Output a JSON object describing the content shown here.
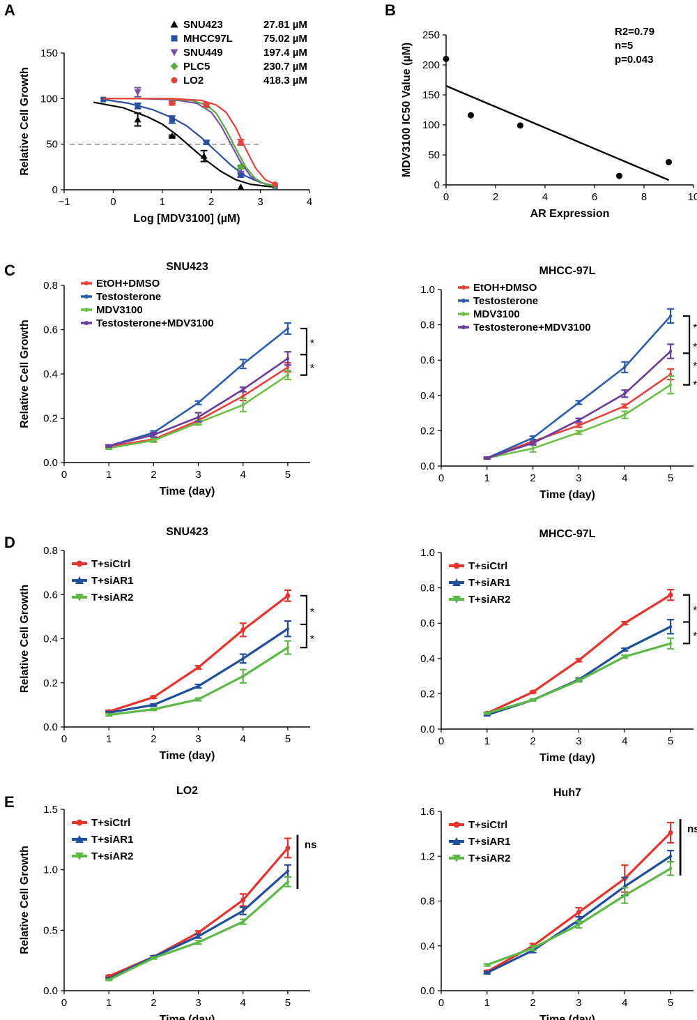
{
  "chart_data": [
    {
      "panel": "A",
      "type": "line",
      "xlabel": "Log [MDV3100] (µM)",
      "ylabel": "Relative Cell Growth",
      "xlim": [
        -1,
        4
      ],
      "ylim": [
        0,
        150
      ],
      "xticks": [
        -1,
        0,
        1,
        2,
        3,
        4
      ],
      "yticks": [
        0,
        50,
        100,
        150
      ],
      "reference_line": 50,
      "series": [
        {
          "name": "SNU423",
          "value_label": "27.81 µM",
          "color": "#000000",
          "marker": "triangle-up",
          "points": [
            {
              "x": 0.5,
              "y": 77,
              "err": 7
            },
            {
              "x": 1.2,
              "y": 59,
              "err": 1
            },
            {
              "x": 1.85,
              "y": 37,
              "err": 6
            },
            {
              "x": 2.6,
              "y": 3,
              "err": 0
            }
          ],
          "curve": [
            {
              "x": -0.4,
              "y": 96
            },
            {
              "x": 0.2,
              "y": 90
            },
            {
              "x": 0.7,
              "y": 80
            },
            {
              "x": 1.0,
              "y": 72
            },
            {
              "x": 1.3,
              "y": 60
            },
            {
              "x": 1.6,
              "y": 46
            },
            {
              "x": 1.9,
              "y": 32
            },
            {
              "x": 2.2,
              "y": 20
            },
            {
              "x": 2.5,
              "y": 11
            },
            {
              "x": 2.8,
              "y": 6
            },
            {
              "x": 3.1,
              "y": 4
            },
            {
              "x": 3.3,
              "y": 3
            }
          ]
        },
        {
          "name": "MHCC97L",
          "value_label": "75.02 µM",
          "color": "#2a4fa0",
          "marker": "square",
          "points": [
            {
              "x": -0.2,
              "y": 99,
              "err": 0
            },
            {
              "x": 0.5,
              "y": 92,
              "err": 3
            },
            {
              "x": 1.2,
              "y": 77,
              "err": 4
            },
            {
              "x": 1.9,
              "y": 52,
              "err": 2
            },
            {
              "x": 2.6,
              "y": 16,
              "err": 2
            },
            {
              "x": 3.3,
              "y": 4,
              "err": 0
            }
          ],
          "curve": [
            {
              "x": -0.2,
              "y": 99
            },
            {
              "x": 0.3,
              "y": 95
            },
            {
              "x": 0.8,
              "y": 88
            },
            {
              "x": 1.2,
              "y": 79
            },
            {
              "x": 1.5,
              "y": 70
            },
            {
              "x": 1.8,
              "y": 57
            },
            {
              "x": 2.1,
              "y": 42
            },
            {
              "x": 2.4,
              "y": 27
            },
            {
              "x": 2.7,
              "y": 15
            },
            {
              "x": 3.0,
              "y": 8
            },
            {
              "x": 3.3,
              "y": 4
            }
          ]
        },
        {
          "name": "SNU449",
          "value_label": "197.4 µM",
          "color": "#7b4fa8",
          "marker": "triangle-down",
          "points": [
            {
              "x": 0.5,
              "y": 107,
              "err": 5
            },
            {
              "x": 1.2,
              "y": 97,
              "err": 2
            },
            {
              "x": 1.9,
              "y": 93,
              "err": 2
            },
            {
              "x": 2.6,
              "y": 23,
              "err": 3
            }
          ],
          "curve": [
            {
              "x": -0.2,
              "y": 100
            },
            {
              "x": 0.5,
              "y": 100
            },
            {
              "x": 1.2,
              "y": 99
            },
            {
              "x": 1.7,
              "y": 95
            },
            {
              "x": 2.0,
              "y": 85
            },
            {
              "x": 2.2,
              "y": 70
            },
            {
              "x": 2.4,
              "y": 50
            },
            {
              "x": 2.6,
              "y": 30
            },
            {
              "x": 2.8,
              "y": 15
            },
            {
              "x": 3.0,
              "y": 8
            },
            {
              "x": 3.3,
              "y": 4
            }
          ]
        },
        {
          "name": "PLC5",
          "value_label": "230.7 µM",
          "color": "#5aaa3c",
          "marker": "diamond",
          "points": [
            {
              "x": 1.9,
              "y": 92,
              "err": 2
            },
            {
              "x": 2.6,
              "y": 25,
              "err": 2
            },
            {
              "x": 3.3,
              "y": 5,
              "err": 0
            }
          ],
          "curve": [
            {
              "x": -0.2,
              "y": 100
            },
            {
              "x": 1.0,
              "y": 100
            },
            {
              "x": 1.6,
              "y": 98
            },
            {
              "x": 1.9,
              "y": 93
            },
            {
              "x": 2.1,
              "y": 84
            },
            {
              "x": 2.3,
              "y": 66
            },
            {
              "x": 2.5,
              "y": 45
            },
            {
              "x": 2.7,
              "y": 25
            },
            {
              "x": 2.9,
              "y": 12
            },
            {
              "x": 3.1,
              "y": 6
            },
            {
              "x": 3.3,
              "y": 4
            }
          ]
        },
        {
          "name": "LO2",
          "value_label": "418.3 µM",
          "color": "#e8403c",
          "marker": "circle",
          "points": [
            {
              "x": 1.2,
              "y": 95,
              "err": 2
            },
            {
              "x": 1.9,
              "y": 93,
              "err": 2
            },
            {
              "x": 2.6,
              "y": 52,
              "err": 3
            },
            {
              "x": 3.3,
              "y": 6,
              "err": 0
            }
          ],
          "curve": [
            {
              "x": -0.2,
              "y": 100
            },
            {
              "x": 1.2,
              "y": 100
            },
            {
              "x": 1.8,
              "y": 98
            },
            {
              "x": 2.1,
              "y": 93
            },
            {
              "x": 2.3,
              "y": 85
            },
            {
              "x": 2.5,
              "y": 68
            },
            {
              "x": 2.7,
              "y": 45
            },
            {
              "x": 2.9,
              "y": 24
            },
            {
              "x": 3.1,
              "y": 11
            },
            {
              "x": 3.3,
              "y": 6
            }
          ]
        }
      ]
    },
    {
      "panel": "B",
      "type": "scatter",
      "xlabel": "AR Expression",
      "ylabel": "MDV3100 IC50 Value (µM)",
      "xlim": [
        0,
        10
      ],
      "ylim": [
        0,
        250
      ],
      "xticks": [
        0,
        2,
        4,
        6,
        8,
        10
      ],
      "yticks": [
        0,
        50,
        100,
        150,
        200,
        250
      ],
      "annotations": [
        "R2=0.79",
        "n=5",
        "p=0.043"
      ],
      "points": [
        {
          "x": 0,
          "y": 210
        },
        {
          "x": 1,
          "y": 116
        },
        {
          "x": 3,
          "y": 99
        },
        {
          "x": 7,
          "y": 15
        },
        {
          "x": 9,
          "y": 38
        }
      ],
      "fit_line": [
        {
          "x": 0,
          "y": 165
        },
        {
          "x": 9,
          "y": 8
        }
      ]
    },
    {
      "panel": "C",
      "type": "line",
      "title": "SNU423",
      "xlabel": "Time (day)",
      "ylabel": "Relative Cell Growth",
      "xlim": [
        0,
        5.5
      ],
      "ylim": [
        0,
        0.8
      ],
      "xticks": [
        0,
        1,
        2,
        3,
        4,
        5
      ],
      "yticks": [
        0.0,
        0.2,
        0.4,
        0.6,
        0.8
      ],
      "legend_style": "small",
      "x": [
        1,
        2,
        3,
        4,
        5
      ],
      "series": [
        {
          "name": "EtOH+DMSO",
          "color": "#e8403c",
          "values": [
            0.072,
            0.105,
            0.19,
            0.3,
            0.43
          ],
          "err": [
            0.005,
            0.01,
            0.01,
            0.02,
            0.02
          ]
        },
        {
          "name": "Testosterone",
          "color": "#2a5db0",
          "values": [
            0.075,
            0.135,
            0.27,
            0.445,
            0.605
          ],
          "err": [
            0.005,
            0.008,
            0.008,
            0.02,
            0.025
          ]
        },
        {
          "name": "MDV3100",
          "color": "#6cbf45",
          "values": [
            0.065,
            0.1,
            0.18,
            0.26,
            0.395
          ],
          "err": [
            0.005,
            0.008,
            0.01,
            0.03,
            0.02
          ]
        },
        {
          "name": "Testosterone+MDV3100",
          "color": "#6a3a9c",
          "values": [
            0.075,
            0.125,
            0.205,
            0.33,
            0.47
          ],
          "err": [
            0.005,
            0.01,
            0.02,
            0.01,
            0.03
          ]
        }
      ],
      "significance": [
        "*",
        "*"
      ]
    },
    {
      "panel": "C",
      "type": "line",
      "title": "MHCC-97L",
      "xlabel": "Time (day)",
      "ylabel": "",
      "xlim": [
        0,
        5.5
      ],
      "ylim": [
        0,
        1.0
      ],
      "xticks": [
        0,
        1,
        2,
        3,
        4,
        5
      ],
      "yticks": [
        0.0,
        0.2,
        0.4,
        0.6,
        0.8,
        1.0
      ],
      "legend_style": "small",
      "x": [
        1,
        2,
        3,
        4,
        5
      ],
      "series": [
        {
          "name": "EtOH+DMSO",
          "color": "#e8403c",
          "values": [
            0.045,
            0.14,
            0.23,
            0.34,
            0.52
          ],
          "err": [
            0.005,
            0.01,
            0.01,
            0.01,
            0.03
          ]
        },
        {
          "name": "Testosterone",
          "color": "#2a5db0",
          "values": [
            0.045,
            0.16,
            0.36,
            0.56,
            0.85
          ],
          "err": [
            0.005,
            0.01,
            0.01,
            0.03,
            0.04
          ]
        },
        {
          "name": "MDV3100",
          "color": "#6cbf45",
          "values": [
            0.045,
            0.1,
            0.19,
            0.29,
            0.46
          ],
          "err": [
            0.005,
            0.02,
            0.01,
            0.02,
            0.05
          ]
        },
        {
          "name": "Testosterone+MDV3100",
          "color": "#6a3a9c",
          "values": [
            0.045,
            0.13,
            0.26,
            0.41,
            0.65
          ],
          "err": [
            0.005,
            0.01,
            0.01,
            0.02,
            0.04
          ]
        }
      ],
      "significance": [
        "*",
        "*",
        "*",
        "*"
      ]
    },
    {
      "panel": "D",
      "type": "line",
      "title": "SNU423",
      "xlabel": "Time (day)",
      "ylabel": "Relative Cell Growth",
      "xlim": [
        0,
        5.5
      ],
      "ylim": [
        0,
        0.8
      ],
      "xticks": [
        0,
        1,
        2,
        3,
        4,
        5
      ],
      "yticks": [
        0.0,
        0.2,
        0.4,
        0.6,
        0.8
      ],
      "legend_style": "thick",
      "x": [
        1,
        2,
        3,
        4,
        5
      ],
      "series": [
        {
          "name": "T+siCtrl",
          "color": "#e8332d",
          "values": [
            0.07,
            0.135,
            0.27,
            0.44,
            0.595
          ],
          "err": [
            0.005,
            0.005,
            0.008,
            0.03,
            0.025
          ]
        },
        {
          "name": "T+siAR1",
          "color": "#1f4e9f",
          "values": [
            0.065,
            0.1,
            0.185,
            0.31,
            0.445
          ],
          "err": [
            0.005,
            0.005,
            0.008,
            0.02,
            0.035
          ]
        },
        {
          "name": "T+siAR2",
          "color": "#5cb946",
          "values": [
            0.055,
            0.08,
            0.125,
            0.23,
            0.36
          ],
          "err": [
            0.005,
            0.005,
            0.006,
            0.03,
            0.03
          ]
        }
      ],
      "significance": [
        "*",
        "*"
      ]
    },
    {
      "panel": "D",
      "type": "line",
      "title": "MHCC-97L",
      "xlabel": "Time (day)",
      "ylabel": "",
      "xlim": [
        0,
        5.5
      ],
      "ylim": [
        0,
        1.0
      ],
      "xticks": [
        0,
        1,
        2,
        3,
        4,
        5
      ],
      "yticks": [
        0.0,
        0.2,
        0.4,
        0.6,
        0.8,
        1.0
      ],
      "legend_style": "thick",
      "x": [
        1,
        2,
        3,
        4,
        5
      ],
      "series": [
        {
          "name": "T+siCtrl",
          "color": "#e8332d",
          "values": [
            0.09,
            0.21,
            0.39,
            0.6,
            0.76
          ],
          "err": [
            0.005,
            0.005,
            0.008,
            0.008,
            0.03
          ]
        },
        {
          "name": "T+siAR1",
          "color": "#1f4e9f",
          "values": [
            0.08,
            0.165,
            0.28,
            0.45,
            0.58
          ],
          "err": [
            0.005,
            0.005,
            0.008,
            0.008,
            0.04
          ]
        },
        {
          "name": "T+siAR2",
          "color": "#5cb946",
          "values": [
            0.09,
            0.165,
            0.275,
            0.41,
            0.485
          ],
          "err": [
            0.005,
            0.005,
            0.008,
            0.008,
            0.03
          ]
        }
      ],
      "significance": [
        "*",
        "*"
      ]
    },
    {
      "panel": "E",
      "type": "line",
      "title": "LO2",
      "xlabel": "Time (day)",
      "ylabel": "Relative Cell Growth",
      "xlim": [
        0,
        5.5
      ],
      "ylim": [
        0,
        1.5
      ],
      "xticks": [
        0,
        1,
        2,
        3,
        4,
        5
      ],
      "yticks": [
        0.0,
        0.5,
        1.0,
        1.5
      ],
      "legend_style": "thick",
      "x": [
        1,
        2,
        3,
        4,
        5
      ],
      "series": [
        {
          "name": "T+siCtrl",
          "color": "#e8332d",
          "values": [
            0.12,
            0.28,
            0.48,
            0.75,
            1.18
          ],
          "err": [
            0.005,
            0.008,
            0.015,
            0.05,
            0.08
          ]
        },
        {
          "name": "T+siAR1",
          "color": "#1f4e9f",
          "values": [
            0.1,
            0.28,
            0.45,
            0.66,
            0.99
          ],
          "err": [
            0.005,
            0.008,
            0.015,
            0.03,
            0.05
          ]
        },
        {
          "name": "T+siAR2",
          "color": "#5cb946",
          "values": [
            0.09,
            0.27,
            0.4,
            0.57,
            0.9
          ],
          "err": [
            0.005,
            0.008,
            0.015,
            0.02,
            0.04
          ]
        }
      ],
      "significance": [
        "ns"
      ]
    },
    {
      "panel": "E",
      "type": "line",
      "title": "Huh7",
      "xlabel": "Time (day)",
      "ylabel": "",
      "xlim": [
        0,
        5.5
      ],
      "ylim": [
        0,
        1.6
      ],
      "xticks": [
        0,
        1,
        2,
        3,
        4,
        5
      ],
      "yticks": [
        0.0,
        0.4,
        0.8,
        1.2,
        1.6
      ],
      "legend_style": "thick",
      "x": [
        1,
        2,
        3,
        4,
        5
      ],
      "series": [
        {
          "name": "T+siCtrl",
          "color": "#e8332d",
          "values": [
            0.17,
            0.4,
            0.7,
            1.0,
            1.41
          ],
          "err": [
            0.01,
            0.02,
            0.04,
            0.12,
            0.09
          ]
        },
        {
          "name": "T+siAR1",
          "color": "#1f4e9f",
          "values": [
            0.16,
            0.36,
            0.63,
            0.93,
            1.2
          ],
          "err": [
            0.01,
            0.02,
            0.03,
            0.08,
            0.05
          ]
        },
        {
          "name": "T+siAR2",
          "color": "#5cb946",
          "values": [
            0.23,
            0.38,
            0.59,
            0.85,
            1.09
          ],
          "err": [
            0.01,
            0.02,
            0.03,
            0.07,
            0.06
          ]
        }
      ],
      "significance": [
        "ns"
      ]
    }
  ],
  "panel_labels": [
    "A",
    "B",
    "C",
    "D",
    "E"
  ]
}
